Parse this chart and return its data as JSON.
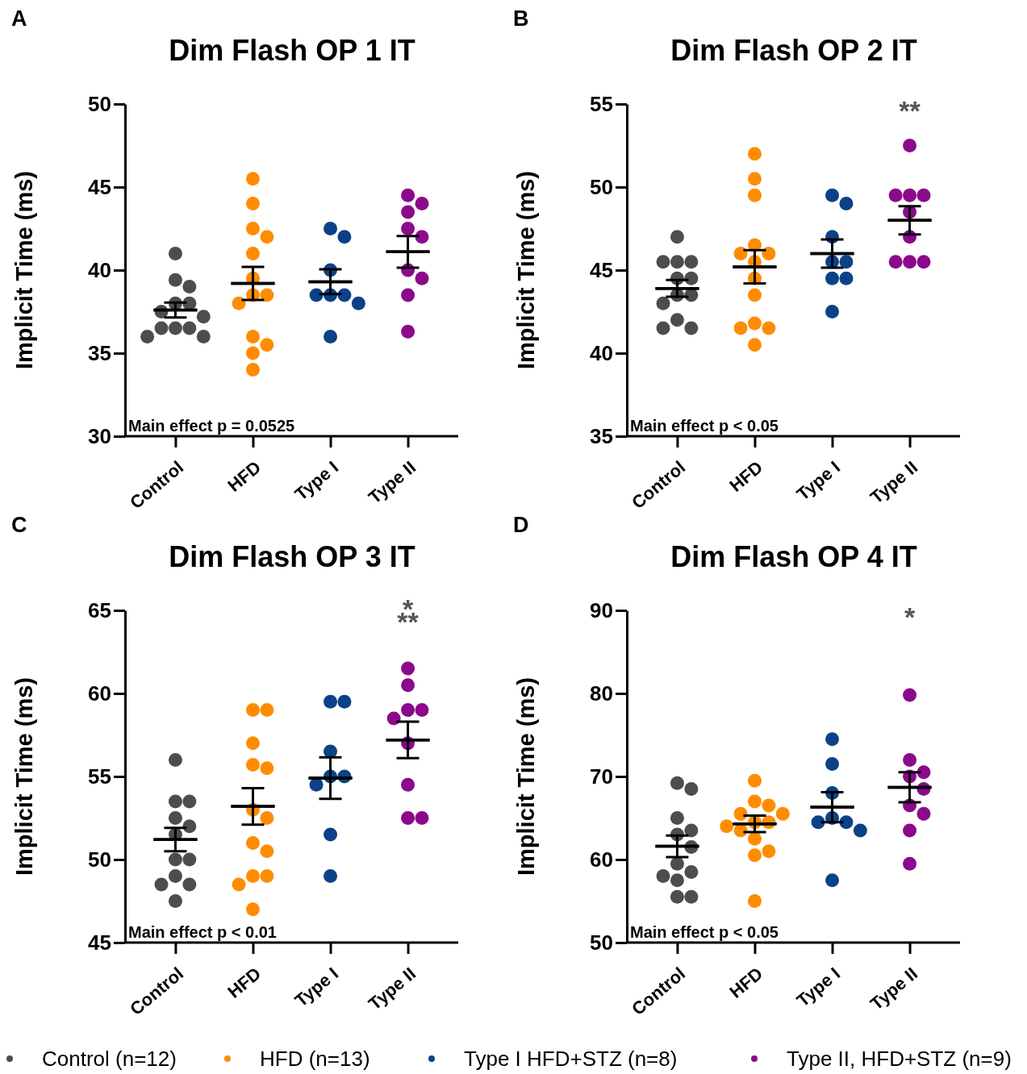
{
  "chart_data": [
    {
      "type": "scatter",
      "title": "Dim Flash OP 1 IT",
      "ylabel": "Implicit Time (ms)",
      "categories": [
        "Control",
        "HFD",
        "Type I",
        "Type II"
      ],
      "ylim": [
        30,
        50
      ],
      "yticks": [
        30,
        35,
        40,
        45,
        50
      ],
      "legend": "bottom",
      "marker": "circle",
      "grid": false,
      "annotations": [
        "A",
        "Main effect p = 0.0525"
      ],
      "series": [
        {
          "name": "Control (n=12)",
          "color": "#4d4d4d",
          "x": [
            "Control",
            "Control",
            "Control",
            "Control",
            "Control",
            "Control",
            "Control",
            "Control",
            "Control",
            "Control",
            "Control",
            "Control"
          ],
          "values": [
            41.0,
            39.4,
            39.0,
            38.0,
            38.0,
            37.5,
            37.2,
            36.5,
            36.5,
            36.5,
            36.0,
            36.0
          ]
        },
        {
          "name": "HFD (n=13)",
          "color": "#ff8c00",
          "x": [
            "HFD",
            "HFD",
            "HFD",
            "HFD",
            "HFD",
            "HFD",
            "HFD",
            "HFD",
            "HFD",
            "HFD",
            "HFD",
            "HFD",
            "HFD"
          ],
          "values": [
            45.5,
            44.0,
            42.5,
            42.0,
            41.0,
            39.5,
            38.5,
            38.5,
            38.0,
            36.0,
            35.5,
            35.0,
            34.0
          ]
        },
        {
          "name": "Type I HFD+STZ (n=8)",
          "color": "#0b4287",
          "x": [
            "Type I",
            "Type I",
            "Type I",
            "Type I",
            "Type I",
            "Type I",
            "Type I",
            "Type I"
          ],
          "values": [
            42.5,
            42.0,
            40.0,
            38.5,
            38.5,
            38.5,
            38.0,
            36.0
          ]
        },
        {
          "name": "Type II, HFD+STZ (n=9)",
          "color": "#8b0a8b",
          "x": [
            "Type II",
            "Type II",
            "Type II",
            "Type II",
            "Type II",
            "Type II",
            "Type II",
            "Type II",
            "Type II"
          ],
          "values": [
            44.5,
            44.0,
            43.5,
            42.5,
            42.0,
            40.0,
            39.5,
            38.5,
            36.3
          ]
        },
        {
          "type": "box",
          "color": "#000000",
          "boxes": [
            {
              "low": 37.15,
              "q1": 37.6,
              "median": 37.6,
              "q3": 37.6,
              "high": 38.05
            },
            {
              "low": 38.2,
              "q1": 39.2,
              "median": 39.2,
              "q3": 39.2,
              "high": 40.2
            },
            {
              "low": 38.55,
              "q1": 39.3,
              "median": 39.3,
              "q3": 39.3,
              "high": 40.05
            },
            {
              "low": 40.15,
              "q1": 41.1,
              "median": 41.1,
              "q3": 41.1,
              "high": 42.05
            }
          ]
        }
      ]
    },
    {
      "type": "scatter",
      "title": "Dim Flash OP 2 IT",
      "ylabel": "Implicit Time (ms)",
      "categories": [
        "Control",
        "HFD",
        "Type I",
        "Type II"
      ],
      "ylim": [
        35,
        55
      ],
      "yticks": [
        35,
        40,
        45,
        50,
        55
      ],
      "marker": "circle",
      "grid": false,
      "annotations": [
        "B",
        "Main effect p < 0.05",
        "**"
      ],
      "series": [
        {
          "color": "#4d4d4d",
          "x": [
            "Control",
            "Control",
            "Control",
            "Control",
            "Control",
            "Control",
            "Control",
            "Control",
            "Control",
            "Control",
            "Control",
            "Control"
          ],
          "values": [
            47.0,
            45.5,
            45.5,
            45.5,
            44.5,
            44.5,
            43.5,
            43.5,
            43.0,
            42.0,
            41.5,
            41.5
          ]
        },
        {
          "color": "#ff8c00",
          "x": [
            "HFD",
            "HFD",
            "HFD",
            "HFD",
            "HFD",
            "HFD",
            "HFD",
            "HFD",
            "HFD",
            "HFD",
            "HFD",
            "HFD",
            "HFD"
          ],
          "values": [
            52.0,
            50.5,
            49.5,
            46.5,
            46.0,
            46.0,
            45.5,
            44.5,
            43.5,
            41.8,
            41.5,
            41.5,
            40.5
          ]
        },
        {
          "color": "#0b4287",
          "x": [
            "Type I",
            "Type I",
            "Type I",
            "Type I",
            "Type I",
            "Type I",
            "Type I",
            "Type I"
          ],
          "values": [
            49.0,
            49.5,
            47.0,
            45.5,
            45.5,
            44.5,
            44.5,
            42.5
          ]
        },
        {
          "color": "#8b0a8b",
          "x": [
            "Type II",
            "Type II",
            "Type II",
            "Type II",
            "Type II",
            "Type II",
            "Type II",
            "Type II",
            "Type II"
          ],
          "values": [
            52.5,
            49.5,
            49.5,
            49.5,
            48.5,
            47.0,
            45.5,
            45.5,
            45.5
          ]
        },
        {
          "type": "box",
          "color": "#000000",
          "boxes": [
            {
              "low": 43.4,
              "q1": 43.9,
              "median": 43.9,
              "q3": 43.9,
              "high": 44.4
            },
            {
              "low": 44.2,
              "q1": 45.2,
              "median": 45.2,
              "q3": 45.2,
              "high": 46.2
            },
            {
              "low": 45.15,
              "q1": 46.0,
              "median": 46.0,
              "q3": 46.0,
              "high": 46.85
            },
            {
              "low": 47.15,
              "q1": 48.0,
              "median": 48.0,
              "q3": 48.0,
              "high": 48.85
            }
          ]
        }
      ]
    },
    {
      "type": "scatter",
      "title": "Dim Flash OP 3 IT",
      "ylabel": "Implicit Time (ms)",
      "categories": [
        "Control",
        "HFD",
        "Type I",
        "Type II"
      ],
      "ylim": [
        45,
        65
      ],
      "yticks": [
        45,
        50,
        55,
        60,
        65
      ],
      "marker": "circle",
      "grid": false,
      "annotations": [
        "C",
        "Main effect p < 0.01",
        "*",
        "**"
      ],
      "series": [
        {
          "color": "#4d4d4d",
          "x": [
            "Control",
            "Control",
            "Control",
            "Control",
            "Control",
            "Control",
            "Control",
            "Control",
            "Control",
            "Control",
            "Control",
            "Control"
          ],
          "values": [
            56.0,
            53.5,
            53.5,
            52.5,
            52.0,
            51.5,
            50.0,
            50.0,
            49.0,
            48.5,
            48.5,
            47.5
          ]
        },
        {
          "color": "#ff8c00",
          "x": [
            "HFD",
            "HFD",
            "HFD",
            "HFD",
            "HFD",
            "HFD",
            "HFD",
            "HFD",
            "HFD",
            "HFD",
            "HFD",
            "HFD",
            "HFD"
          ],
          "values": [
            59.0,
            59.0,
            57.0,
            55.5,
            55.7,
            53.0,
            52.5,
            51.0,
            50.5,
            49.0,
            49.0,
            48.5,
            47.0
          ]
        },
        {
          "color": "#0b4287",
          "x": [
            "Type I",
            "Type I",
            "Type I",
            "Type I",
            "Type I",
            "Type I",
            "Type I",
            "Type I"
          ],
          "values": [
            59.5,
            59.5,
            56.5,
            55.0,
            55.0,
            54.5,
            51.5,
            49.0
          ]
        },
        {
          "color": "#8b0a8b",
          "x": [
            "Type II",
            "Type II",
            "Type II",
            "Type II",
            "Type II",
            "Type II",
            "Type II",
            "Type II",
            "Type II"
          ],
          "values": [
            61.5,
            60.5,
            59.0,
            59.0,
            58.5,
            57.0,
            54.5,
            52.5,
            52.5
          ]
        },
        {
          "type": "box",
          "color": "#000000",
          "boxes": [
            {
              "low": 50.5,
              "q1": 51.2,
              "median": 51.2,
              "q3": 51.2,
              "high": 51.9
            },
            {
              "low": 52.1,
              "q1": 53.2,
              "median": 53.2,
              "q3": 53.2,
              "high": 54.3
            },
            {
              "low": 53.65,
              "q1": 54.9,
              "median": 54.9,
              "q3": 54.9,
              "high": 56.15
            },
            {
              "low": 56.1,
              "q1": 57.2,
              "median": 57.2,
              "q3": 57.2,
              "high": 58.3
            }
          ]
        }
      ]
    },
    {
      "type": "scatter",
      "title": "Dim Flash OP 4 IT",
      "ylabel": "Implicit Time (ms)",
      "categories": [
        "Control",
        "HFD",
        "Type I",
        "Type II"
      ],
      "ylim": [
        50,
        90
      ],
      "yticks": [
        50,
        60,
        70,
        80,
        90
      ],
      "marker": "circle",
      "grid": false,
      "annotations": [
        "D",
        "Main effect p < 0.05",
        "*"
      ],
      "series": [
        {
          "color": "#4d4d4d",
          "x": [
            "Control",
            "Control",
            "Control",
            "Control",
            "Control",
            "Control",
            "Control",
            "Control",
            "Control",
            "Control",
            "Control",
            "Control"
          ],
          "values": [
            69.2,
            68.5,
            65.0,
            63.5,
            63.0,
            61.5,
            59.5,
            58.5,
            58.0,
            57.5,
            55.5,
            55.5
          ]
        },
        {
          "color": "#ff8c00",
          "x": [
            "HFD",
            "HFD",
            "HFD",
            "HFD",
            "HFD",
            "HFD",
            "HFD",
            "HFD",
            "HFD",
            "HFD",
            "HFD",
            "HFD",
            "HFD"
          ],
          "values": [
            69.5,
            67.0,
            66.5,
            65.5,
            65.5,
            64.5,
            64.5,
            64.0,
            63.5,
            62.5,
            61.0,
            60.5,
            55.0
          ]
        },
        {
          "color": "#0b4287",
          "x": [
            "Type I",
            "Type I",
            "Type I",
            "Type I",
            "Type I",
            "Type I",
            "Type I",
            "Type I"
          ],
          "values": [
            74.5,
            71.5,
            68.0,
            65.0,
            64.5,
            64.5,
            63.5,
            57.5
          ]
        },
        {
          "color": "#8b0a8b",
          "x": [
            "Type II",
            "Type II",
            "Type II",
            "Type II",
            "Type II",
            "Type II",
            "Type II",
            "Type II",
            "Type II"
          ],
          "values": [
            79.8,
            72.0,
            70.5,
            70.0,
            68.5,
            66.5,
            65.5,
            63.5,
            59.5
          ]
        },
        {
          "type": "box",
          "color": "#000000",
          "boxes": [
            {
              "low": 60.3,
              "q1": 61.6,
              "median": 61.6,
              "q3": 61.6,
              "high": 62.9
            },
            {
              "low": 63.3,
              "q1": 64.3,
              "median": 64.3,
              "q3": 64.3,
              "high": 65.3
            },
            {
              "low": 64.5,
              "q1": 66.3,
              "median": 66.3,
              "q3": 66.3,
              "high": 68.1
            },
            {
              "low": 66.9,
              "q1": 68.7,
              "median": 68.7,
              "q3": 68.7,
              "high": 70.5
            }
          ]
        }
      ]
    }
  ]
}
